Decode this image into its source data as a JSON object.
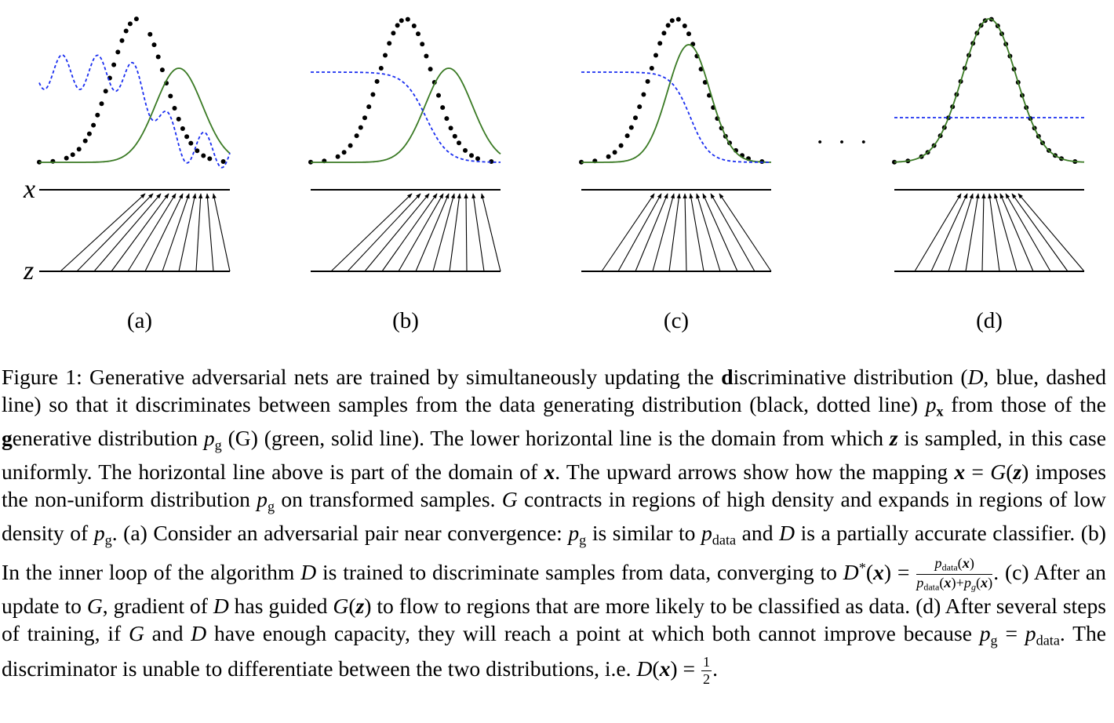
{
  "figure": {
    "axis_labels": {
      "x": "x",
      "z": "z"
    },
    "panel_labels": [
      "(a)",
      "(b)",
      "(c)",
      "(d)"
    ],
    "ellipsis": "· · ·",
    "colors": {
      "data": "#000000",
      "generator": "#3a7a24",
      "discriminator": "#1a2ef0"
    }
  },
  "caption": {
    "figure_number": "Figure 1:",
    "segments": [
      {
        "t": "Generative adversarial nets are trained by simultaneously updating the "
      },
      {
        "t": "d",
        "s": "bd"
      },
      {
        "t": "iscriminative distribution ("
      },
      {
        "t": "D",
        "s": "m"
      },
      {
        "t": ", blue, dashed line) so that it discriminates between samples from the data generating distribution (black, dotted line) "
      },
      {
        "t": "p",
        "s": "m"
      },
      {
        "t": "x",
        "s": "sub b"
      },
      {
        "t": " from those of the "
      },
      {
        "t": "g",
        "s": "bd"
      },
      {
        "t": "enerative distribution "
      },
      {
        "t": "p",
        "s": "m"
      },
      {
        "t": "g",
        "s": "sub m"
      },
      {
        "t": " (G) (green, solid line). The lower horizontal line is the domain from which "
      },
      {
        "t": "z",
        "s": "b"
      },
      {
        "t": " is sampled, in this case uniformly. The horizontal line above is part of the domain of "
      },
      {
        "t": "x",
        "s": "b"
      },
      {
        "t": ". The upward arrows show how the mapping "
      },
      {
        "t": "x",
        "s": "b"
      },
      {
        "t": " = "
      },
      {
        "t": "G",
        "s": "m"
      },
      {
        "t": "("
      },
      {
        "t": "z",
        "s": "b"
      },
      {
        "t": ") imposes the non-uniform distribution "
      },
      {
        "t": "p",
        "s": "m"
      },
      {
        "t": "g",
        "s": "sub m"
      },
      {
        "t": " on transformed samples. "
      },
      {
        "t": "G",
        "s": "m"
      },
      {
        "t": " contracts in regions of high density and expands in regions of low density of "
      },
      {
        "t": "p",
        "s": "m"
      },
      {
        "t": "g",
        "s": "sub m"
      },
      {
        "t": ". (a) Consider an adversarial pair near convergence: "
      },
      {
        "t": "p",
        "s": "m"
      },
      {
        "t": "g",
        "s": "sub m"
      },
      {
        "t": " is similar to "
      },
      {
        "t": "p",
        "s": "m"
      },
      {
        "t": "data",
        "s": "sub"
      },
      {
        "t": " and "
      },
      {
        "t": "D",
        "s": "m"
      },
      {
        "t": " is a partially accurate classifier. (b) In the inner loop of the algorithm "
      },
      {
        "t": "D",
        "s": "m"
      },
      {
        "t": " is trained to discriminate samples from data, converging to "
      },
      {
        "t": "D",
        "s": "m"
      },
      {
        "t": "*",
        "s": "sup"
      },
      {
        "t": "("
      },
      {
        "t": "x",
        "s": "b"
      },
      {
        "t": ") = "
      },
      {
        "frac": true,
        "num": "pdata(x)",
        "den": "pdata(x)+pg(x)"
      },
      {
        "t": ". (c) After an update to "
      },
      {
        "t": "G",
        "s": "m"
      },
      {
        "t": ", gradient of "
      },
      {
        "t": "D",
        "s": "m"
      },
      {
        "t": " has guided "
      },
      {
        "t": "G",
        "s": "m"
      },
      {
        "t": "("
      },
      {
        "t": "z",
        "s": "b"
      },
      {
        "t": ") to flow to regions that are more likely to be classified as data. (d) After several steps of training, if "
      },
      {
        "t": "G",
        "s": "m"
      },
      {
        "t": " and "
      },
      {
        "t": "D",
        "s": "m"
      },
      {
        "t": " have enough capacity, they will reach a point at which both cannot improve because "
      },
      {
        "t": "p",
        "s": "m"
      },
      {
        "t": "g",
        "s": "sub m"
      },
      {
        "t": " = "
      },
      {
        "t": "p",
        "s": "m"
      },
      {
        "t": "data",
        "s": "sub"
      },
      {
        "t": ". The discriminator is unable to differentiate between the two distributions, i.e. "
      },
      {
        "t": "D",
        "s": "m"
      },
      {
        "t": "("
      },
      {
        "t": "x",
        "s": "b"
      },
      {
        "t": ") = "
      },
      {
        "frac": true,
        "num": "1",
        "den": "2"
      },
      {
        "t": "."
      }
    ]
  }
}
